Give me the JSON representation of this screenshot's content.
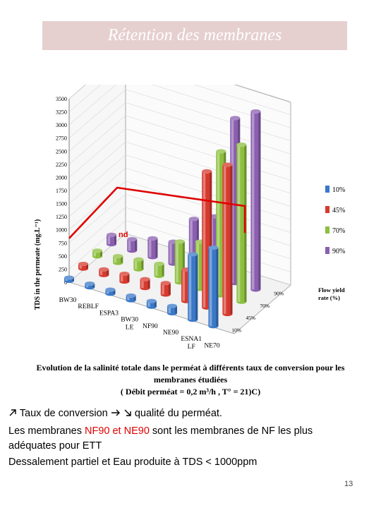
{
  "slide": {
    "title": "Rétention des membranes",
    "page_number": "13"
  },
  "caption": {
    "line1": "Evolution de la  salinité totale dans le perméat à différents taux de conversion pour les",
    "line2": "membranes étudiées",
    "line3": "( Débit perméat = 0,2 m³/h , T° = 21)C)"
  },
  "text": {
    "line1_a": "Taux de conversion",
    "line1_b": "qualité du perméat.",
    "line2_a": "Les membranes ",
    "line2_red": "NF90 et NE90",
    "line2_b": " sont les membranes de NF les plus",
    "line3": "adéquates pour ETT",
    "line4": "Dessalement partiel et Eau produite à TDS < 1000ppm"
  },
  "chart_data": {
    "type": "bar",
    "ylabel": "TDS in the permeate (mg.L⁻¹)",
    "ylim": [
      0,
      3500
    ],
    "yticks": [
      0,
      250,
      500,
      750,
      1000,
      1250,
      1500,
      1750,
      2000,
      2250,
      2500,
      2750,
      3000,
      3250,
      3500
    ],
    "categories": [
      "BW30",
      "REBLF",
      "ESPA3",
      "BW30 LE",
      "NF90",
      "NE90",
      "ESNA1 LF",
      "NE70"
    ],
    "depth_label": "Flow yield rate (%)",
    "depth_ticks": [
      "10%",
      "45%",
      "70%",
      "90%"
    ],
    "series": [
      {
        "name": "10%",
        "color": "#3a78c8",
        "values": [
          60,
          70,
          80,
          90,
          110,
          140,
          1250,
          1500
        ]
      },
      {
        "name": "45%",
        "color": "#d63a2e",
        "values": [
          90,
          110,
          150,
          170,
          220,
          600,
          2600,
          2850
        ]
      },
      {
        "name": "70%",
        "color": "#8dbf3e",
        "values": [
          110,
          130,
          190,
          230,
          780,
          900,
          2750,
          3000
        ]
      },
      {
        "name": "90%",
        "color": "#8a5fb0",
        "values": [
          180,
          220,
          360,
          420,
          980,
          1150,
          3150,
          3400
        ]
      }
    ],
    "legend_position": "right",
    "annotation": "nd",
    "threshold_value": 1000,
    "threshold_color": "#e00000"
  }
}
